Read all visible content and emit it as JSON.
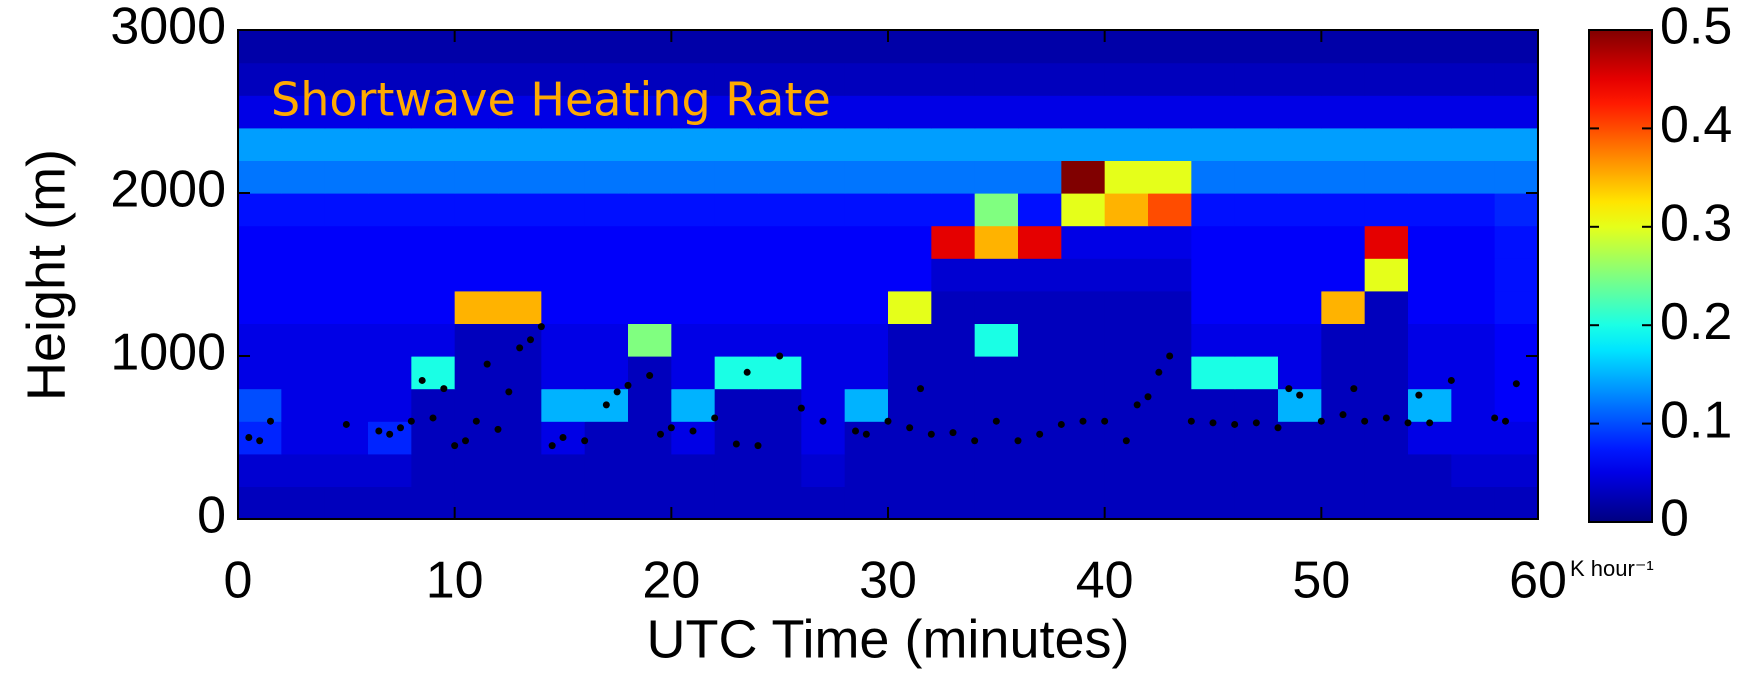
{
  "chart_data": {
    "type": "heatmap",
    "title": "Shortwave Heating Rate",
    "xlabel": "UTC Time (minutes)",
    "ylabel": "Height (m)",
    "colorbar_label": "K hour⁻¹",
    "colormap": "jet",
    "xlim": [
      0,
      60
    ],
    "ylim": [
      0,
      3000
    ],
    "xticks": [
      0,
      10,
      20,
      30,
      40,
      50,
      60
    ],
    "yticks": [
      0,
      1000,
      2000,
      3000
    ],
    "clim": [
      0,
      0.5
    ],
    "cticks": [
      0,
      0.1,
      0.2,
      0.3,
      0.4,
      0.5
    ],
    "z": [
      [
        0.03,
        0.03,
        0.03,
        0.03,
        0.03,
        0.03,
        0.03,
        0.03,
        0.03,
        0.03,
        0.03,
        0.03,
        0.03,
        0.03,
        0.03,
        0.03,
        0.03,
        0.03,
        0.03,
        0.03,
        0.03,
        0.03,
        0.03,
        0.03,
        0.03,
        0.03,
        0.03,
        0.03,
        0.03,
        0.03
      ],
      [
        0.04,
        0.04,
        0.04,
        0.04,
        0.03,
        0.03,
        0.03,
        0.03,
        0.03,
        0.03,
        0.03,
        0.03,
        0.03,
        0.04,
        0.03,
        0.03,
        0.03,
        0.03,
        0.03,
        0.03,
        0.03,
        0.03,
        0.03,
        0.03,
        0.03,
        0.03,
        0.03,
        0.03,
        0.04,
        0.04
      ],
      [
        0.08,
        0.05,
        0.05,
        0.08,
        0.03,
        0.03,
        0.03,
        0.05,
        0.03,
        0.03,
        0.05,
        0.03,
        0.03,
        0.05,
        0.03,
        0.03,
        0.03,
        0.03,
        0.03,
        0.03,
        0.03,
        0.03,
        0.03,
        0.03,
        0.03,
        0.03,
        0.03,
        0.05,
        0.05,
        0.05
      ],
      [
        0.1,
        0.05,
        0.05,
        0.05,
        0.03,
        0.03,
        0.03,
        0.15,
        0.15,
        0.03,
        0.15,
        0.03,
        0.03,
        0.05,
        0.15,
        0.03,
        0.03,
        0.03,
        0.03,
        0.03,
        0.03,
        0.03,
        0.03,
        0.03,
        0.15,
        0.03,
        0.03,
        0.15,
        0.05,
        0.06
      ],
      [
        0.05,
        0.05,
        0.05,
        0.05,
        0.2,
        0.03,
        0.03,
        0.05,
        0.05,
        0.03,
        0.05,
        0.2,
        0.2,
        0.05,
        0.05,
        0.03,
        0.03,
        0.03,
        0.03,
        0.03,
        0.03,
        0.03,
        0.2,
        0.2,
        0.05,
        0.03,
        0.03,
        0.05,
        0.05,
        0.06
      ],
      [
        0.05,
        0.05,
        0.05,
        0.05,
        0.05,
        0.03,
        0.03,
        0.05,
        0.05,
        0.25,
        0.05,
        0.05,
        0.05,
        0.05,
        0.05,
        0.03,
        0.03,
        0.2,
        0.03,
        0.03,
        0.03,
        0.03,
        0.05,
        0.05,
        0.05,
        0.03,
        0.03,
        0.05,
        0.05,
        0.06
      ],
      [
        0.06,
        0.06,
        0.06,
        0.06,
        0.06,
        0.35,
        0.35,
        0.06,
        0.06,
        0.06,
        0.06,
        0.06,
        0.06,
        0.06,
        0.06,
        0.3,
        0.03,
        0.03,
        0.03,
        0.03,
        0.03,
        0.03,
        0.06,
        0.06,
        0.06,
        0.35,
        0.03,
        0.06,
        0.06,
        0.07
      ],
      [
        0.06,
        0.06,
        0.06,
        0.06,
        0.06,
        0.06,
        0.06,
        0.06,
        0.06,
        0.06,
        0.06,
        0.06,
        0.06,
        0.06,
        0.06,
        0.06,
        0.04,
        0.04,
        0.04,
        0.04,
        0.04,
        0.04,
        0.06,
        0.06,
        0.06,
        0.06,
        0.3,
        0.06,
        0.06,
        0.07
      ],
      [
        0.06,
        0.06,
        0.06,
        0.06,
        0.06,
        0.06,
        0.06,
        0.06,
        0.06,
        0.06,
        0.06,
        0.06,
        0.06,
        0.06,
        0.06,
        0.06,
        0.45,
        0.35,
        0.45,
        0.05,
        0.05,
        0.05,
        0.06,
        0.06,
        0.06,
        0.06,
        0.45,
        0.06,
        0.06,
        0.07
      ],
      [
        0.07,
        0.07,
        0.07,
        0.07,
        0.07,
        0.07,
        0.07,
        0.07,
        0.07,
        0.07,
        0.07,
        0.07,
        0.07,
        0.07,
        0.07,
        0.07,
        0.07,
        0.25,
        0.07,
        0.3,
        0.35,
        0.4,
        0.07,
        0.07,
        0.07,
        0.07,
        0.07,
        0.07,
        0.07,
        0.08
      ],
      [
        0.12,
        0.12,
        0.12,
        0.12,
        0.12,
        0.12,
        0.12,
        0.12,
        0.12,
        0.12,
        0.12,
        0.12,
        0.12,
        0.12,
        0.12,
        0.12,
        0.12,
        0.12,
        0.12,
        0.5,
        0.3,
        0.3,
        0.12,
        0.12,
        0.12,
        0.12,
        0.12,
        0.12,
        0.12,
        0.12
      ],
      [
        0.14,
        0.14,
        0.14,
        0.14,
        0.14,
        0.14,
        0.14,
        0.14,
        0.14,
        0.14,
        0.14,
        0.14,
        0.14,
        0.14,
        0.14,
        0.14,
        0.14,
        0.14,
        0.14,
        0.14,
        0.14,
        0.14,
        0.14,
        0.14,
        0.14,
        0.14,
        0.14,
        0.14,
        0.14,
        0.14
      ],
      [
        0.05,
        0.05,
        0.05,
        0.05,
        0.05,
        0.05,
        0.05,
        0.05,
        0.05,
        0.05,
        0.05,
        0.05,
        0.05,
        0.05,
        0.05,
        0.05,
        0.05,
        0.05,
        0.05,
        0.05,
        0.05,
        0.05,
        0.05,
        0.05,
        0.05,
        0.05,
        0.05,
        0.05,
        0.05,
        0.05
      ],
      [
        0.03,
        0.03,
        0.03,
        0.03,
        0.03,
        0.03,
        0.03,
        0.03,
        0.03,
        0.03,
        0.03,
        0.03,
        0.03,
        0.03,
        0.03,
        0.03,
        0.03,
        0.03,
        0.03,
        0.03,
        0.03,
        0.03,
        0.03,
        0.03,
        0.03,
        0.03,
        0.03,
        0.03,
        0.03,
        0.03
      ],
      [
        0.02,
        0.02,
        0.02,
        0.02,
        0.02,
        0.02,
        0.02,
        0.02,
        0.02,
        0.02,
        0.02,
        0.02,
        0.02,
        0.02,
        0.02,
        0.02,
        0.02,
        0.02,
        0.02,
        0.02,
        0.02,
        0.02,
        0.02,
        0.02,
        0.02,
        0.02,
        0.02,
        0.02,
        0.02,
        0.02
      ]
    ],
    "points": {
      "color": "#000000",
      "x": [
        0.5,
        1,
        1.5,
        5,
        6.5,
        7,
        7.5,
        8,
        8.5,
        9,
        9.5,
        10,
        10.5,
        11,
        11.5,
        12,
        12.5,
        13,
        13.5,
        14,
        14.5,
        15,
        16,
        17,
        17.5,
        18,
        19,
        19.5,
        20,
        21,
        22,
        23,
        23.5,
        24,
        25,
        26,
        27,
        28.5,
        29,
        30,
        31,
        31.5,
        32,
        33,
        34,
        35,
        36,
        37,
        38,
        39,
        40,
        41,
        41.5,
        42,
        42.5,
        43,
        44,
        45,
        46,
        47,
        48,
        48.5,
        49,
        50,
        51,
        51.5,
        52,
        53,
        54,
        54.5,
        55,
        56,
        58,
        58.5,
        59
      ],
      "y": [
        500,
        480,
        600,
        580,
        540,
        520,
        560,
        600,
        850,
        620,
        800,
        450,
        480,
        600,
        950,
        550,
        780,
        1050,
        1100,
        1180,
        450,
        500,
        480,
        700,
        780,
        820,
        880,
        520,
        560,
        540,
        620,
        460,
        900,
        450,
        1000,
        680,
        600,
        540,
        520,
        600,
        560,
        800,
        520,
        530,
        480,
        600,
        480,
        520,
        580,
        600,
        600,
        480,
        700,
        750,
        900,
        1000,
        600,
        590,
        580,
        590,
        560,
        800,
        760,
        600,
        640,
        800,
        600,
        620,
        590,
        760,
        590,
        850,
        620,
        600,
        830
      ]
    }
  }
}
